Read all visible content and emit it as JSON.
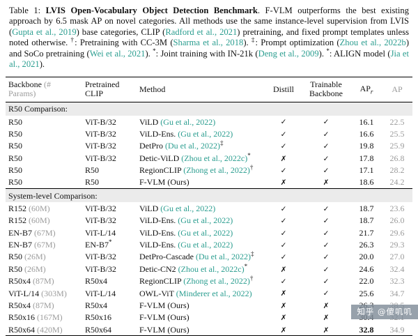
{
  "colors": {
    "cite": "#2a9d8f",
    "muted": "#9b9b9b",
    "section_bg": "#ebebeb"
  },
  "marks": {
    "check": "✓",
    "cross": "✗"
  },
  "caption": {
    "segments": [
      {
        "text": "Table 1: ",
        "style": "normal"
      },
      {
        "text": "LVIS Open-Vocabulary Object Detection Benchmark",
        "style": "bold"
      },
      {
        "text": ". F-VLM outperforms the best existing approach by 6.5 mask AP on novel categories. All methods use the same instance-level supervision from LVIS (",
        "style": "normal"
      },
      {
        "text": "Gupta et al., 2019",
        "style": "cite"
      },
      {
        "text": ") base categories, CLIP (",
        "style": "normal"
      },
      {
        "text": "Radford et al., 2021",
        "style": "cite"
      },
      {
        "text": ") pretraining, and fixed prompt templates unless noted otherwise. ",
        "style": "normal"
      },
      {
        "text": "†",
        "style": "sup"
      },
      {
        "text": ": Pretraining with CC-3M (",
        "style": "normal"
      },
      {
        "text": "Sharma et al., 2018",
        "style": "cite"
      },
      {
        "text": "). ",
        "style": "normal"
      },
      {
        "text": "‡",
        "style": "sup"
      },
      {
        "text": ": Prompt optimization (",
        "style": "normal"
      },
      {
        "text": "Zhou et al., 2022b",
        "style": "cite"
      },
      {
        "text": ") and SoCo pretraining (",
        "style": "normal"
      },
      {
        "text": "Wei et al., 2021",
        "style": "cite"
      },
      {
        "text": "). ",
        "style": "normal"
      },
      {
        "text": "*",
        "style": "sup"
      },
      {
        "text": ": Joint training with IN-21k (",
        "style": "normal"
      },
      {
        "text": "Deng et al., 2009",
        "style": "cite"
      },
      {
        "text": "). ",
        "style": "normal"
      },
      {
        "text": "*",
        "style": "sup"
      },
      {
        "text": ": ALIGN model (",
        "style": "normal"
      },
      {
        "text": "Jia et al., 2021",
        "style": "cite"
      },
      {
        "text": ").",
        "style": "normal"
      }
    ]
  },
  "table": {
    "header": {
      "backbone": "Backbone",
      "backbone_params": "(# Params)",
      "pretrained_clip": "Pretrained CLIP",
      "method": "Method",
      "distill": "Distill",
      "trainable": "Trainable Backbone",
      "apr_base": "AP",
      "apr_sub": "r",
      "ap": "AP"
    },
    "sections": [
      {
        "label": "R50 Comparison:",
        "rows": [
          {
            "backbone": "R50",
            "params": "",
            "clip": "ViT-B/32",
            "clip_sup": "",
            "method": "ViLD",
            "cite": "(Gu et al., 2022)",
            "sup": "",
            "distill": "check",
            "trainable": "check",
            "apr": "16.1",
            "apr_bold": false,
            "ap": "22.5"
          },
          {
            "backbone": "R50",
            "params": "",
            "clip": "ViT-B/32",
            "clip_sup": "",
            "method": "ViLD-Ens.",
            "cite": "(Gu et al., 2022)",
            "sup": "",
            "distill": "check",
            "trainable": "check",
            "apr": "16.6",
            "apr_bold": false,
            "ap": "25.5"
          },
          {
            "backbone": "R50",
            "params": "",
            "clip": "ViT-B/32",
            "clip_sup": "",
            "method": "DetPro",
            "cite": "(Du et al., 2022)",
            "sup": "‡",
            "distill": "check",
            "trainable": "check",
            "apr": "19.8",
            "apr_bold": false,
            "ap": "25.9"
          },
          {
            "backbone": "R50",
            "params": "",
            "clip": "ViT-B/32",
            "clip_sup": "",
            "method": "Detic-ViLD",
            "cite": "(Zhou et al., 2022c)",
            "sup": "*",
            "distill": "cross",
            "trainable": "check",
            "apr": "17.8",
            "apr_bold": false,
            "ap": "26.8"
          },
          {
            "backbone": "R50",
            "params": "",
            "clip": "R50",
            "clip_sup": "",
            "method": "RegionCLIP",
            "cite": "(Zhong et al., 2022)",
            "sup": "†",
            "distill": "check",
            "trainable": "check",
            "apr": "17.1",
            "apr_bold": false,
            "ap": "28.2"
          },
          {
            "backbone": "R50",
            "params": "",
            "clip": "R50",
            "clip_sup": "",
            "method": "F-VLM (Ours)",
            "cite": "",
            "sup": "",
            "distill": "cross",
            "trainable": "cross",
            "apr": "18.6",
            "apr_bold": false,
            "ap": "24.2"
          }
        ]
      },
      {
        "label": "System-level Comparison:",
        "rows": [
          {
            "backbone": "R152",
            "params": "(60M)",
            "clip": "ViT-B/32",
            "clip_sup": "",
            "method": "ViLD",
            "cite": "(Gu et al., 2022)",
            "sup": "",
            "distill": "check",
            "trainable": "check",
            "apr": "18.7",
            "apr_bold": false,
            "ap": "23.6"
          },
          {
            "backbone": "R152",
            "params": "(60M)",
            "clip": "ViT-B/32",
            "clip_sup": "",
            "method": "ViLD-Ens.",
            "cite": "(Gu et al., 2022)",
            "sup": "",
            "distill": "check",
            "trainable": "check",
            "apr": "18.7",
            "apr_bold": false,
            "ap": "26.0"
          },
          {
            "backbone": "EN-B7",
            "params": "(67M)",
            "clip": "ViT-L/14",
            "clip_sup": "",
            "method": "ViLD-Ens.",
            "cite": "(Gu et al., 2022)",
            "sup": "",
            "distill": "check",
            "trainable": "check",
            "apr": "21.7",
            "apr_bold": false,
            "ap": "29.6"
          },
          {
            "backbone": "EN-B7",
            "params": "(67M)",
            "clip": "EN-B7",
            "clip_sup": "*",
            "method": "ViLD-Ens.",
            "cite": "(Gu et al., 2022)",
            "sup": "",
            "distill": "check",
            "trainable": "check",
            "apr": "26.3",
            "apr_bold": false,
            "ap": "29.3"
          },
          {
            "backbone": "R50",
            "params": "(26M)",
            "clip": "ViT-B/32",
            "clip_sup": "",
            "method": "DetPro-Cascade",
            "cite": "(Du et al., 2022)",
            "sup": "‡",
            "distill": "check",
            "trainable": "check",
            "apr": "20.0",
            "apr_bold": false,
            "ap": "27.0"
          },
          {
            "backbone": "R50",
            "params": "(26M)",
            "clip": "ViT-B/32",
            "clip_sup": "",
            "method": "Detic-CN2",
            "cite": "(Zhou et al., 2022c)",
            "sup": "*",
            "distill": "cross",
            "trainable": "check",
            "apr": "24.6",
            "apr_bold": false,
            "ap": "32.4"
          },
          {
            "backbone": "R50x4",
            "params": "(87M)",
            "clip": "R50x4",
            "clip_sup": "",
            "method": "RegionCLIP",
            "cite": "(Zhong et al., 2022)",
            "sup": "†",
            "distill": "check",
            "trainable": "check",
            "apr": "22.0",
            "apr_bold": false,
            "ap": "32.3"
          },
          {
            "backbone": "ViT-L/14",
            "params": "(303M)",
            "clip": "ViT-L/14",
            "clip_sup": "",
            "method": "OWL-ViT",
            "cite": "(Minderer et al., 2022)",
            "sup": "",
            "distill": "cross",
            "trainable": "check",
            "apr": "25.6",
            "apr_bold": false,
            "ap": "34.7"
          },
          {
            "backbone": "R50x4",
            "params": "(87M)",
            "clip": "R50x4",
            "clip_sup": "",
            "method": "F-VLM (Ours)",
            "cite": "",
            "sup": "",
            "distill": "cross",
            "trainable": "cross",
            "apr": "26.3",
            "apr_bold": false,
            "ap": "28.5"
          },
          {
            "backbone": "R50x16",
            "params": "(167M)",
            "clip": "R50x16",
            "clip_sup": "",
            "method": "F-VLM (Ours)",
            "cite": "",
            "sup": "",
            "distill": "cross",
            "trainable": "cross",
            "apr": "30.4",
            "apr_bold": false,
            "ap": "32.1"
          },
          {
            "backbone": "R50x64",
            "params": "(420M)",
            "clip": "R50x64",
            "clip_sup": "",
            "method": "F-VLM (Ours)",
            "cite": "",
            "sup": "",
            "distill": "cross",
            "trainable": "cross",
            "apr": "32.8",
            "apr_bold": true,
            "ap": "34.9"
          }
        ]
      }
    ]
  },
  "watermark": {
    "text": "知乎 @傻叽叽"
  }
}
